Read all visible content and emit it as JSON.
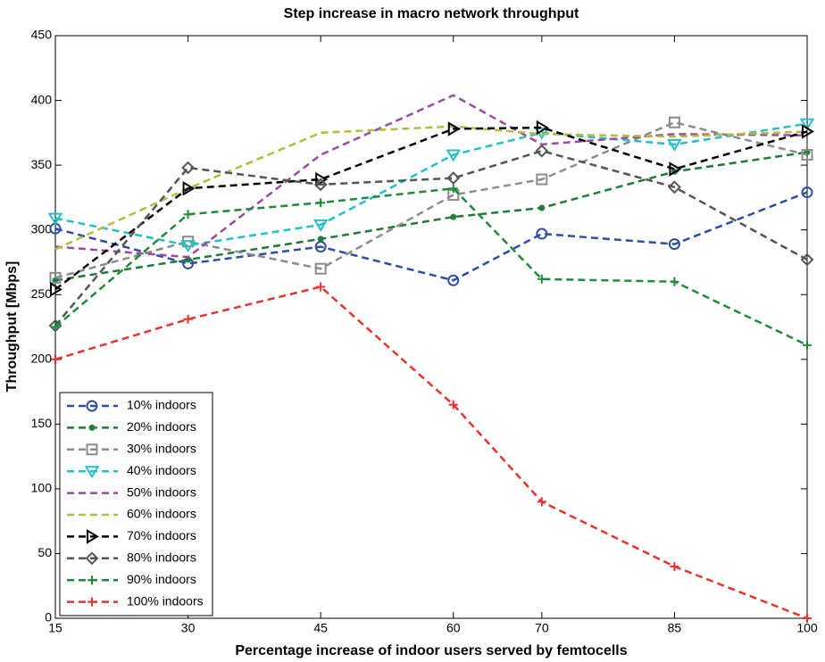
{
  "chart_data": {
    "type": "line",
    "title": "Step increase in macro network throughput",
    "xlabel": "Percentage increase of indoor users served by femtocells",
    "ylabel": "Throughput [Mbps]",
    "x": [
      15,
      30,
      45,
      60,
      70,
      85,
      100
    ],
    "xlim": [
      15,
      100
    ],
    "xticks": [
      15,
      30,
      45,
      60,
      70,
      85,
      100
    ],
    "ylim": [
      0,
      450
    ],
    "yticks": [
      0,
      50,
      100,
      150,
      200,
      250,
      300,
      350,
      400,
      450
    ],
    "grid": false,
    "legend_position": "lower-left",
    "series": [
      {
        "name": "10% indoors",
        "color": "#2f4ea0",
        "marker": "circle",
        "values": [
          301,
          274,
          287,
          261,
          297,
          289,
          329
        ]
      },
      {
        "name": "20% indoors",
        "color": "#1e7b3a",
        "marker": "star",
        "values": [
          261,
          277,
          293,
          310,
          317,
          345,
          360
        ]
      },
      {
        "name": "30% indoors",
        "color": "#8c8c8c",
        "marker": "square",
        "values": [
          263,
          291,
          270,
          327,
          339,
          383,
          358
        ]
      },
      {
        "name": "40% indoors",
        "color": "#22c0c8",
        "marker": "triangle-down",
        "values": [
          309,
          288,
          304,
          358,
          375,
          366,
          382
        ]
      },
      {
        "name": "50% indoors",
        "color": "#9b4a9f",
        "marker": "none",
        "values": [
          287,
          279,
          358,
          404,
          366,
          374,
          373
        ]
      },
      {
        "name": "60% indoors",
        "color": "#b5bd3a",
        "marker": "none",
        "values": [
          285,
          332,
          375,
          380,
          374,
          372,
          376
        ]
      },
      {
        "name": "70% indoors",
        "color": "#000000",
        "marker": "triangle-right",
        "values": [
          254,
          332,
          339,
          378,
          379,
          347,
          376
        ]
      },
      {
        "name": "80% indoors",
        "color": "#555555",
        "marker": "diamond",
        "values": [
          226,
          348,
          335,
          340,
          361,
          333,
          277
        ]
      },
      {
        "name": "90% indoors",
        "color": "#1e8b3a",
        "marker": "plus",
        "values": [
          225,
          312,
          321,
          332,
          262,
          260,
          211
        ]
      },
      {
        "name": "100% indoors",
        "color": "#e8332e",
        "marker": "plus",
        "values": [
          200,
          231,
          256,
          165,
          90,
          40,
          0
        ]
      }
    ]
  }
}
